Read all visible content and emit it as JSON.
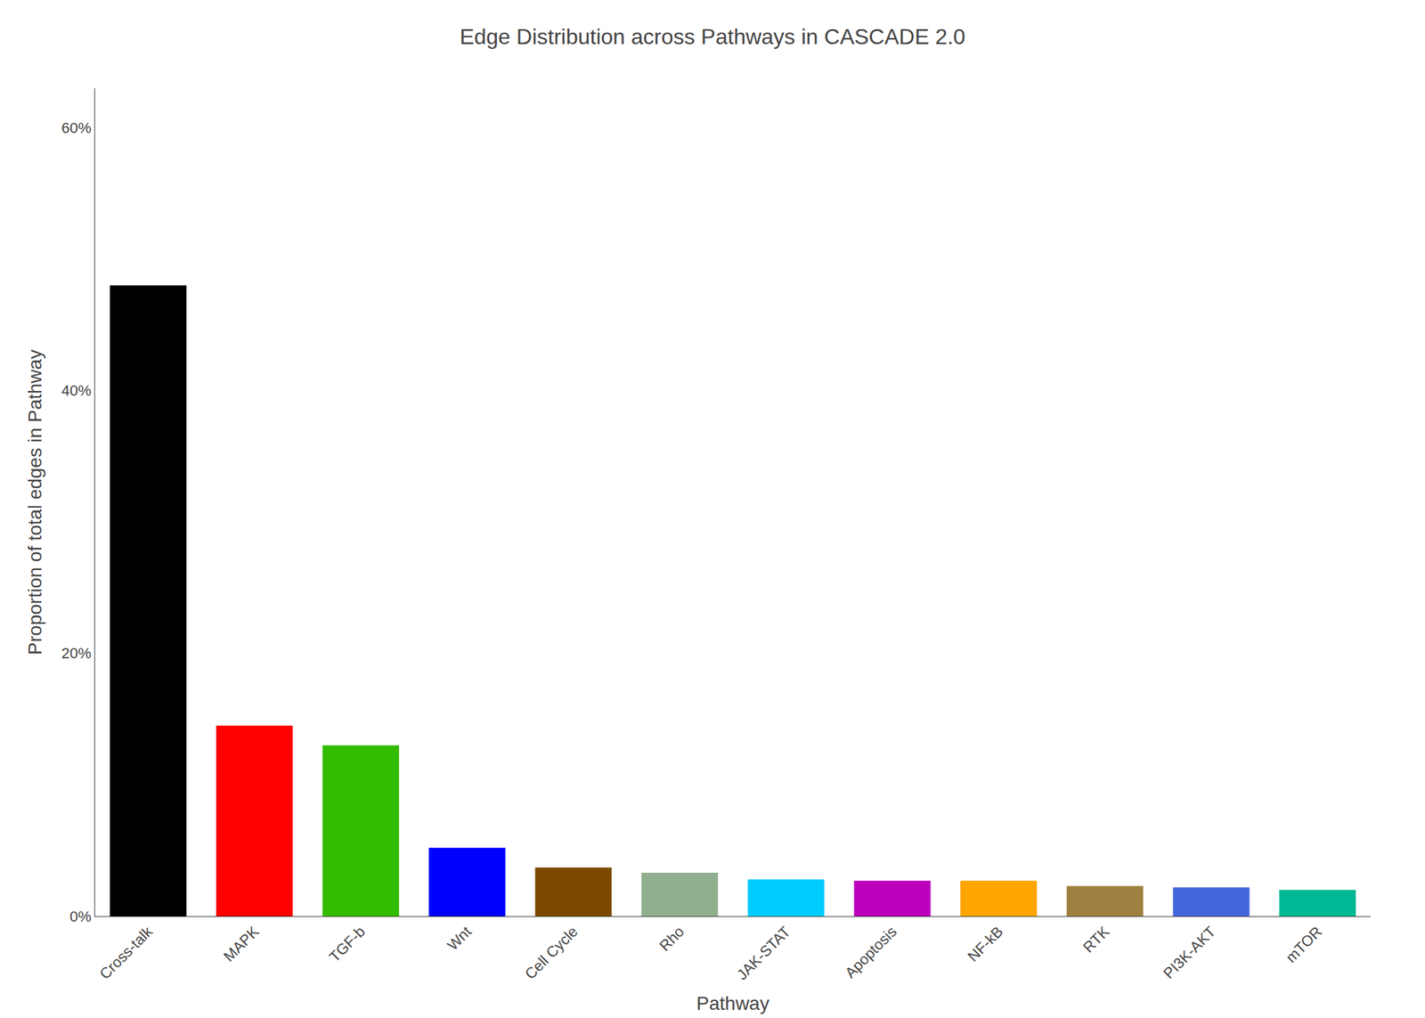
{
  "chart_data": {
    "type": "bar",
    "title": "Edge Distribution across Pathways in CASCADE 2.0",
    "xlabel": "Pathway",
    "ylabel": "Proportion of total edges in Pathway",
    "categories": [
      "Cross-talk",
      "MAPK",
      "TGF-b",
      "Wnt",
      "Cell Cycle",
      "Rho",
      "JAK-STAT",
      "Apoptosis",
      "NF-kB",
      "RTK",
      "PI3K-AKT",
      "mTOR"
    ],
    "values": [
      0.48,
      0.145,
      0.13,
      0.052,
      0.037,
      0.033,
      0.028,
      0.027,
      0.027,
      0.023,
      0.022,
      0.02
    ],
    "colors": [
      "#000000",
      "#FF0000",
      "#33BB00",
      "#0000FF",
      "#7B4A00",
      "#8FAF8F",
      "#00CCFF",
      "#BB00BB",
      "#FFA500",
      "#A08040",
      "#4466DD",
      "#00B894"
    ],
    "ylim": [
      0,
      0.63
    ],
    "yticks": [
      {
        "value": 0.0,
        "label": "0%"
      },
      {
        "value": 0.2,
        "label": "20%"
      },
      {
        "value": 0.4,
        "label": "40%"
      },
      {
        "value": 0.6,
        "label": "60%"
      }
    ],
    "grid": false
  }
}
